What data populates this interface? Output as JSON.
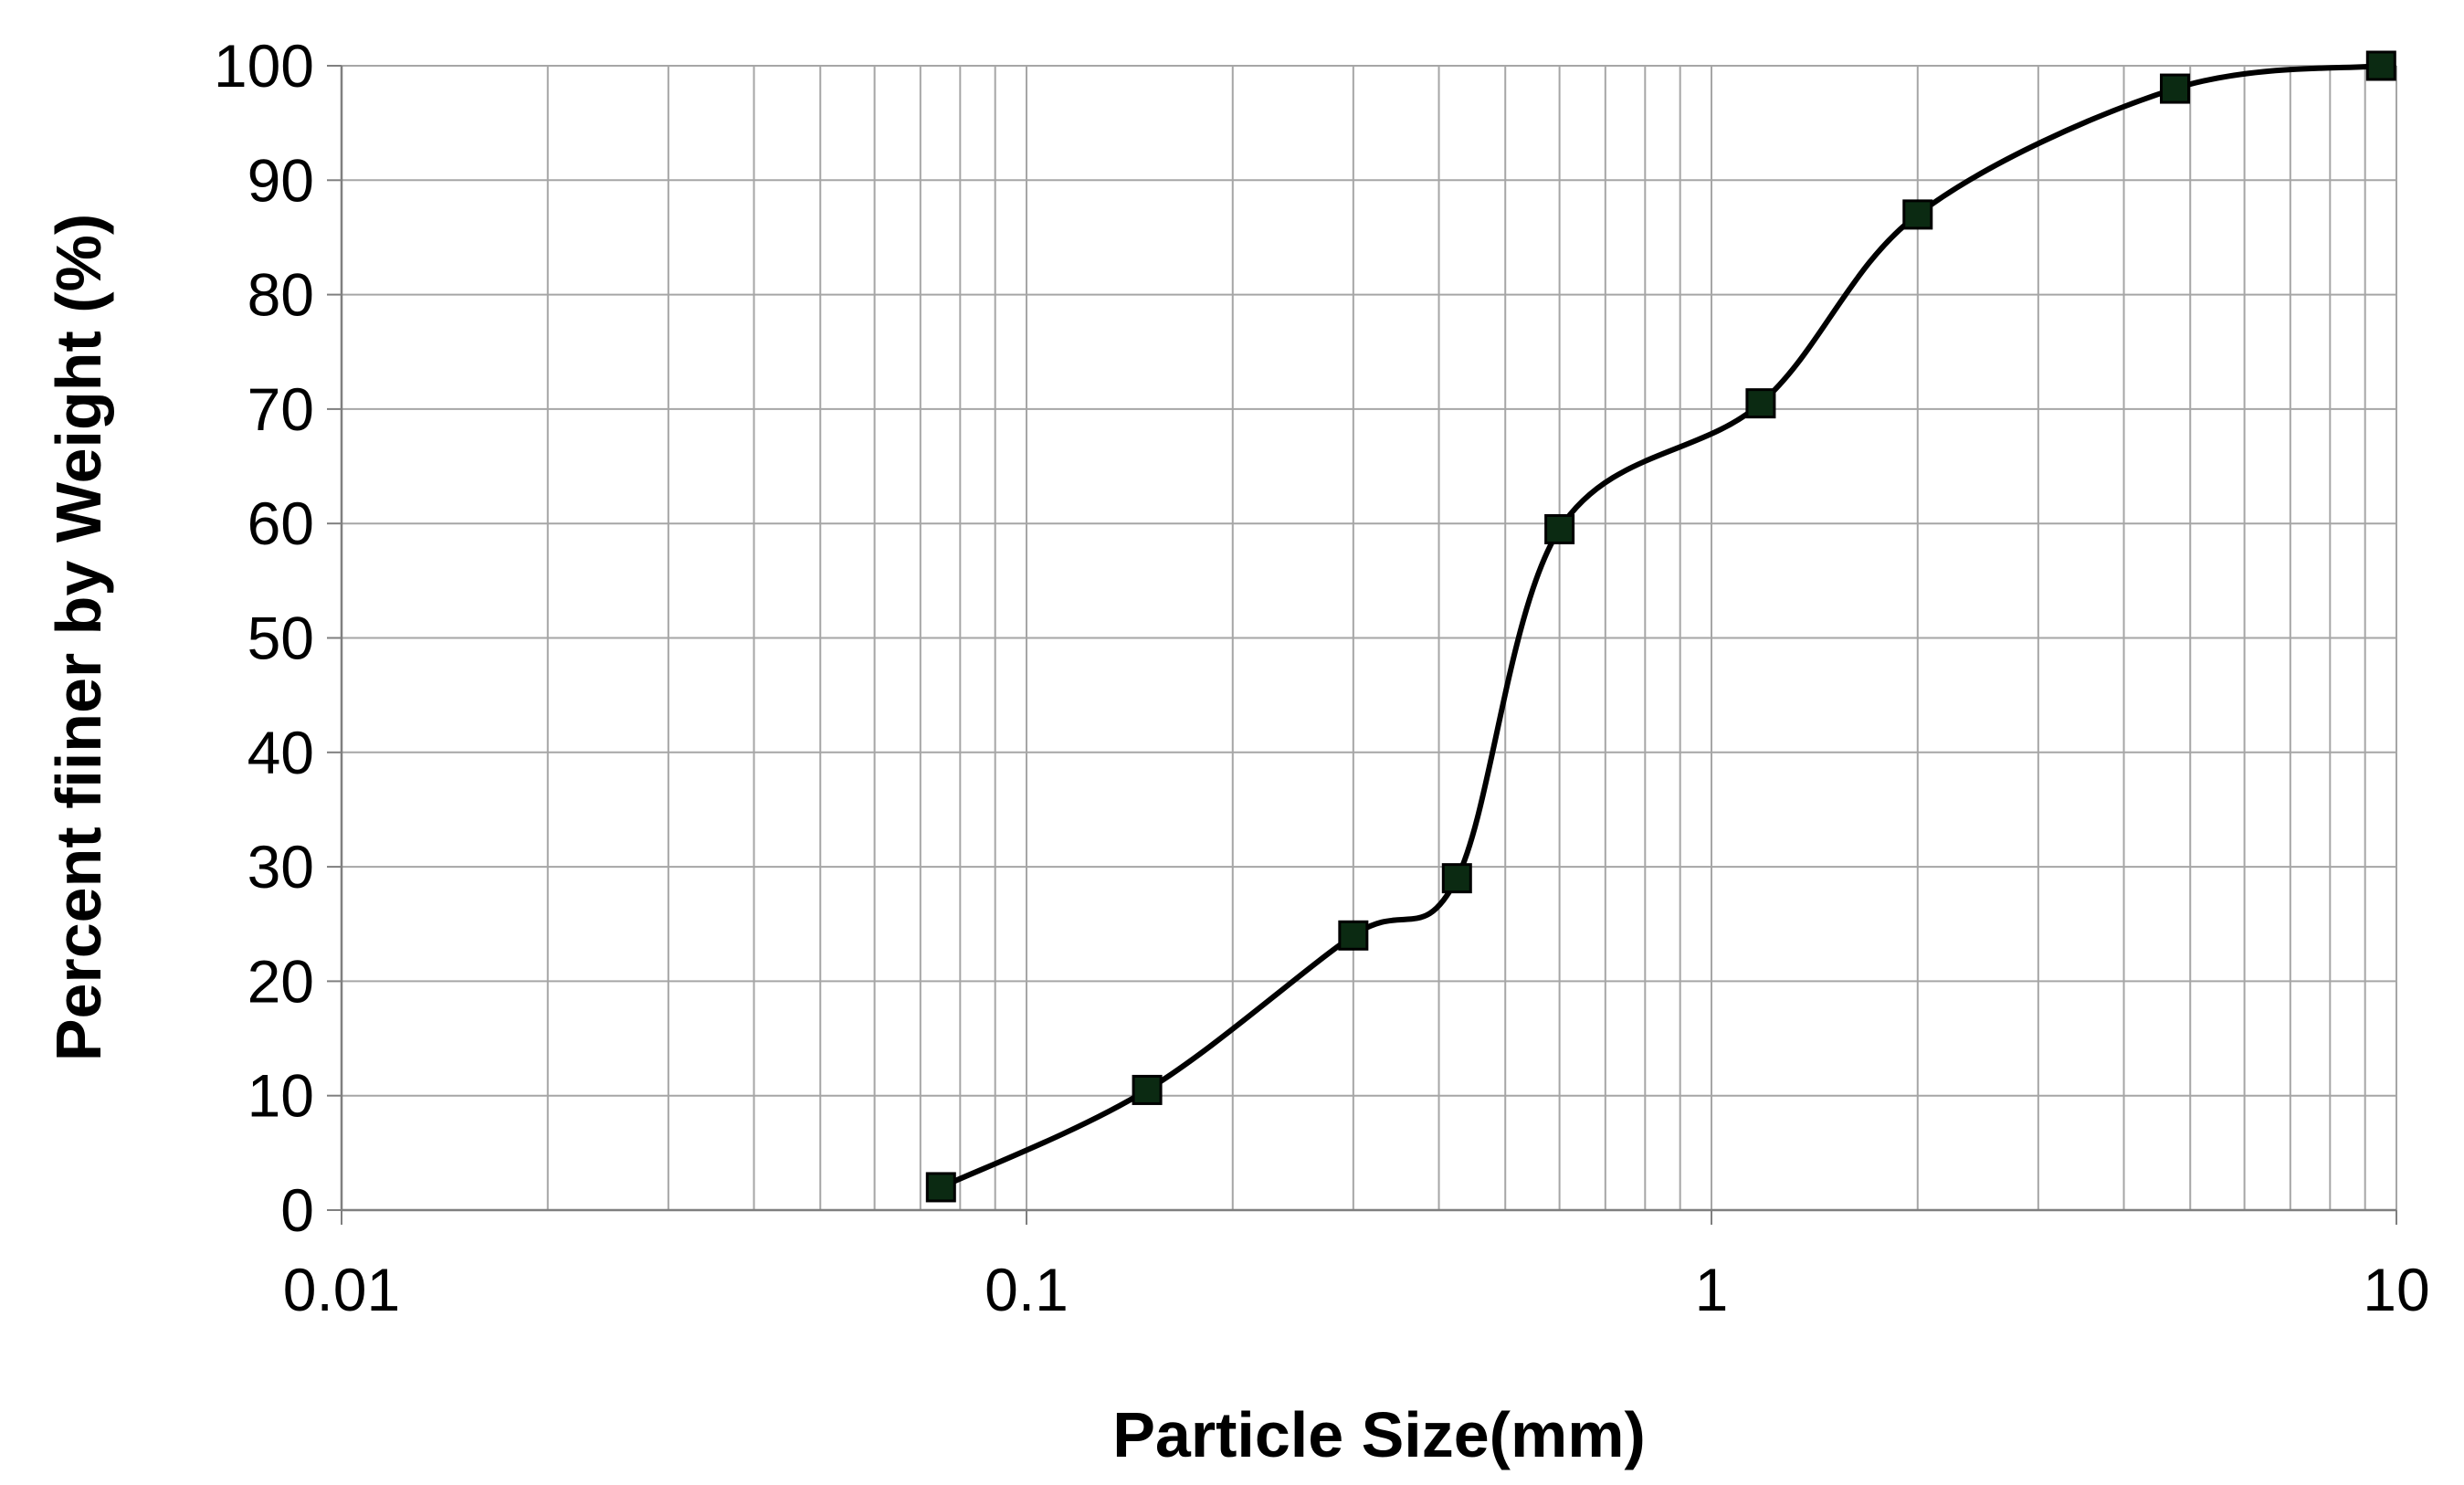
{
  "chart_data": {
    "type": "line",
    "xlabel": "Particle Size(mm)",
    "ylabel": "Percent fiiner by Weight (%)",
    "xscale": "log",
    "xlim": [
      0.01,
      10
    ],
    "ylim": [
      0,
      100
    ],
    "grid": true,
    "smooth": true,
    "x_ticks": [
      "0.01",
      "0.1",
      "1",
      "10"
    ],
    "y_ticks": [
      "0",
      "10",
      "20",
      "30",
      "40",
      "50",
      "60",
      "70",
      "80",
      "90",
      "100"
    ],
    "series": [
      {
        "x": [
          0.075,
          0.15,
          0.3,
          0.425,
          0.6,
          1.18,
          2.0,
          4.75,
          9.5
        ],
        "y": [
          2,
          10.5,
          24,
          29,
          59.5,
          70.5,
          87,
          98,
          100
        ],
        "line_color": "#000000",
        "marker": "square",
        "marker_fill": "#0b2a12"
      }
    ]
  }
}
